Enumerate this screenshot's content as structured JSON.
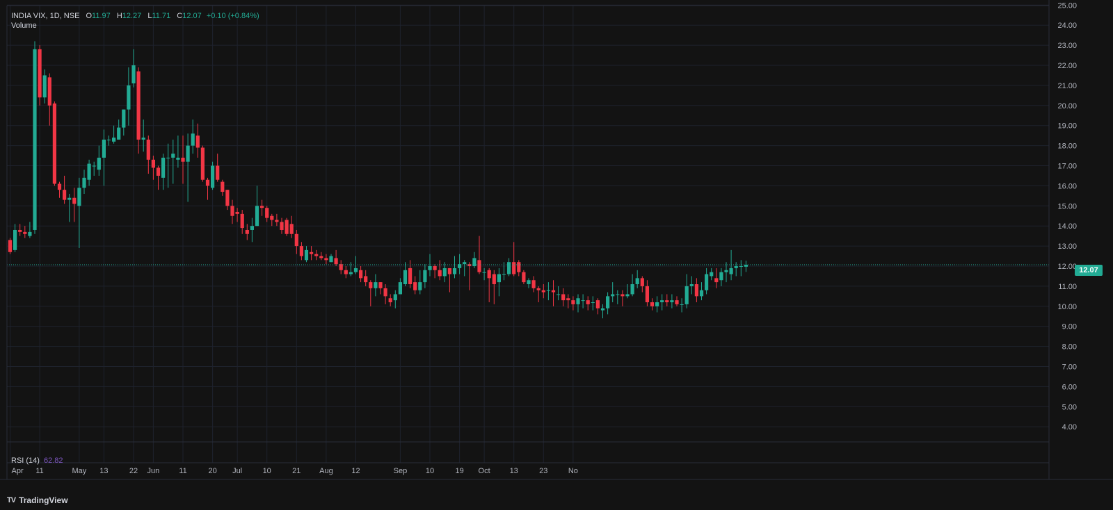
{
  "legend": {
    "symbol": "INDIA VIX, 1D, NSE",
    "open_key": "O",
    "open": "11.97",
    "high_key": "H",
    "high": "12.27",
    "low_key": "L",
    "low": "11.71",
    "close_key": "C",
    "close": "12.07",
    "change": "+0.10 (+0.84%)"
  },
  "volume_label": "Volume",
  "rsi": {
    "label": "RSI (14)",
    "value": "62.82"
  },
  "last_price": "12.07",
  "brand": {
    "logo": "TV",
    "name": "TradingView"
  },
  "colors": {
    "up": "#22ab94",
    "down": "#f23645",
    "background": "#131313",
    "grid": "#1e222d",
    "axis_text": "#b2b5be",
    "rsi": "#7e57c2"
  },
  "chart_data": {
    "type": "candlestick",
    "title": "INDIA VIX, 1D, NSE",
    "ylim": [
      3.5,
      25
    ],
    "y_ticks": [
      "4.00",
      "5.00",
      "6.00",
      "7.00",
      "8.00",
      "9.00",
      "10.00",
      "11.00",
      "12.00",
      "13.00",
      "14.00",
      "15.00",
      "16.00",
      "17.00",
      "18.00",
      "19.00",
      "20.00",
      "21.00",
      "22.00",
      "23.00",
      "24.00",
      "25.00"
    ],
    "x_labels": [
      {
        "label": "Apr",
        "index": 0
      },
      {
        "label": "11",
        "index": 6
      },
      {
        "label": "May",
        "index": 14
      },
      {
        "label": "13",
        "index": 19
      },
      {
        "label": "22",
        "index": 25
      },
      {
        "label": "Jun",
        "index": 29
      },
      {
        "label": "11",
        "index": 35
      },
      {
        "label": "20",
        "index": 41
      },
      {
        "label": "Jul",
        "index": 46
      },
      {
        "label": "10",
        "index": 52
      },
      {
        "label": "21",
        "index": 58
      },
      {
        "label": "Aug",
        "index": 64
      },
      {
        "label": "12",
        "index": 70
      },
      {
        "label": "Sep",
        "index": 79
      },
      {
        "label": "10",
        "index": 85
      },
      {
        "label": "19",
        "index": 91
      },
      {
        "label": "Oct",
        "index": 96
      },
      {
        "label": "13",
        "index": 102
      },
      {
        "label": "23",
        "index": 108
      },
      {
        "label": "No",
        "index": 114
      }
    ],
    "candles": [
      [
        13.3,
        12.7,
        13.4,
        12.6
      ],
      [
        12.8,
        13.8,
        14.1,
        12.7
      ],
      [
        13.8,
        13.7,
        14.1,
        13.5
      ],
      [
        13.7,
        13.6,
        14.0,
        13.4
      ],
      [
        13.5,
        13.7,
        14.2,
        13.4
      ],
      [
        13.8,
        22.8,
        23.2,
        13.6
      ],
      [
        22.8,
        20.4,
        23.0,
        20.0
      ],
      [
        20.4,
        21.5,
        21.8,
        20.1
      ],
      [
        21.4,
        20.0,
        21.6,
        19.0
      ],
      [
        20.1,
        16.1,
        20.2,
        16.0
      ],
      [
        16.1,
        15.8,
        16.2,
        15.4
      ],
      [
        15.8,
        15.3,
        16.5,
        15.1
      ],
      [
        15.3,
        15.4,
        15.6,
        14.2
      ],
      [
        15.4,
        15.1,
        15.9,
        14.2
      ],
      [
        15.0,
        15.9,
        16.4,
        12.9
      ],
      [
        15.9,
        16.4,
        16.8,
        15.6
      ],
      [
        16.3,
        17.1,
        17.3,
        16.0
      ],
      [
        17.0,
        17.0,
        17.2,
        16.5
      ],
      [
        16.8,
        17.4,
        18.0,
        16.5
      ],
      [
        17.4,
        18.3,
        18.8,
        16.0
      ],
      [
        18.3,
        18.3,
        18.5,
        18.0
      ],
      [
        18.2,
        18.4,
        19.0,
        18.1
      ],
      [
        18.3,
        18.9,
        19.3,
        18.3
      ],
      [
        18.9,
        19.8,
        19.8,
        18.5
      ],
      [
        19.8,
        21.0,
        21.9,
        19.0
      ],
      [
        21.1,
        22.0,
        22.8,
        20.9
      ],
      [
        21.7,
        18.3,
        21.9,
        17.6
      ],
      [
        18.3,
        18.4,
        19.3,
        17.7
      ],
      [
        18.3,
        17.3,
        18.5,
        16.6
      ],
      [
        17.3,
        16.9,
        17.5,
        16.3
      ],
      [
        16.9,
        16.5,
        17.0,
        15.8
      ],
      [
        16.4,
        17.4,
        17.6,
        15.8
      ],
      [
        17.4,
        17.4,
        18.1,
        15.9
      ],
      [
        17.4,
        17.6,
        18.3,
        16.1
      ],
      [
        17.3,
        17.4,
        18.5,
        16.9
      ],
      [
        17.4,
        17.2,
        18.5,
        16.1
      ],
      [
        17.2,
        18.0,
        18.6,
        15.2
      ],
      [
        18.0,
        18.6,
        19.3,
        17.6
      ],
      [
        18.5,
        17.9,
        19.1,
        17.4
      ],
      [
        17.9,
        16.3,
        18.0,
        16.2
      ],
      [
        16.3,
        16.0,
        16.4,
        15.3
      ],
      [
        15.9,
        17.0,
        17.2,
        15.8
      ],
      [
        17.0,
        16.3,
        17.6,
        16.2
      ],
      [
        16.2,
        15.7,
        16.3,
        15.5
      ],
      [
        15.8,
        15.0,
        15.8,
        14.8
      ],
      [
        15.0,
        14.5,
        15.3,
        14.1
      ],
      [
        14.7,
        14.6,
        14.9,
        14.2
      ],
      [
        14.6,
        13.9,
        14.8,
        13.6
      ],
      [
        13.8,
        13.6,
        14.1,
        13.3
      ],
      [
        13.8,
        14.0,
        14.4,
        13.2
      ],
      [
        14.0,
        15.0,
        16.0,
        14.0
      ],
      [
        15.0,
        14.9,
        15.3,
        14.5
      ],
      [
        14.9,
        14.4,
        15.0,
        14.2
      ],
      [
        14.5,
        14.3,
        14.6,
        14.0
      ],
      [
        14.3,
        14.2,
        14.6,
        14.0
      ],
      [
        14.2,
        13.8,
        14.4,
        13.6
      ],
      [
        14.3,
        13.6,
        14.4,
        13.5
      ],
      [
        14.1,
        13.6,
        14.5,
        13.4
      ],
      [
        13.6,
        13.0,
        13.8,
        12.6
      ],
      [
        13.0,
        12.5,
        13.2,
        12.3
      ],
      [
        12.3,
        12.8,
        13.0,
        12.2
      ],
      [
        12.7,
        12.6,
        13.0,
        12.3
      ],
      [
        12.6,
        12.5,
        12.8,
        12.3
      ],
      [
        12.5,
        12.4,
        12.7,
        12.3
      ],
      [
        12.4,
        12.3,
        12.6,
        12.1
      ],
      [
        12.2,
        12.5,
        12.6,
        12.2
      ],
      [
        12.4,
        12.1,
        12.8,
        12.0
      ],
      [
        12.1,
        11.8,
        12.3,
        11.6
      ],
      [
        11.8,
        11.6,
        12.0,
        11.4
      ],
      [
        11.6,
        11.7,
        12.2,
        11.5
      ],
      [
        11.7,
        11.9,
        12.5,
        11.6
      ],
      [
        11.8,
        11.4,
        12.0,
        11.2
      ],
      [
        11.5,
        11.2,
        11.8,
        11.0
      ],
      [
        11.2,
        10.9,
        11.3,
        10.0
      ],
      [
        10.9,
        11.2,
        11.6,
        10.5
      ],
      [
        11.2,
        10.9,
        11.2,
        10.6
      ],
      [
        10.9,
        10.5,
        11.1,
        10.1
      ],
      [
        10.4,
        10.2,
        10.6,
        10.0
      ],
      [
        10.3,
        10.6,
        10.8,
        9.9
      ],
      [
        10.6,
        11.2,
        11.4,
        10.6
      ],
      [
        11.1,
        11.8,
        12.2,
        11.0
      ],
      [
        11.9,
        11.1,
        12.3,
        10.9
      ],
      [
        11.2,
        10.8,
        11.5,
        10.6
      ],
      [
        10.8,
        11.2,
        11.8,
        10.6
      ],
      [
        11.2,
        11.8,
        12.1,
        10.9
      ],
      [
        11.8,
        12.0,
        12.6,
        11.5
      ],
      [
        12.0,
        11.8,
        12.1,
        11.4
      ],
      [
        11.8,
        11.5,
        12.3,
        11.3
      ],
      [
        11.5,
        11.9,
        12.2,
        11.2
      ],
      [
        11.9,
        11.6,
        11.9,
        10.7
      ],
      [
        11.6,
        11.9,
        12.5,
        11.4
      ],
      [
        11.9,
        12.1,
        12.6,
        11.6
      ],
      [
        12.1,
        12.2,
        12.3,
        11.5
      ],
      [
        12.1,
        12.0,
        12.2,
        10.8
      ],
      [
        12.0,
        12.4,
        12.7,
        11.9
      ],
      [
        12.3,
        11.7,
        13.5,
        11.6
      ],
      [
        11.7,
        11.7,
        11.9,
        11.3
      ],
      [
        11.8,
        11.4,
        11.9,
        10.2
      ],
      [
        11.6,
        11.1,
        11.8,
        10.1
      ],
      [
        11.2,
        11.6,
        11.9,
        10.5
      ],
      [
        11.6,
        11.6,
        12.2,
        11.3
      ],
      [
        11.6,
        12.2,
        12.4,
        11.5
      ],
      [
        12.2,
        11.6,
        13.2,
        11.5
      ],
      [
        12.2,
        11.7,
        12.3,
        11.5
      ],
      [
        11.7,
        11.2,
        11.8,
        11.1
      ],
      [
        11.1,
        11.3,
        11.4,
        10.9
      ],
      [
        11.3,
        10.9,
        11.5,
        10.7
      ],
      [
        10.9,
        10.8,
        11.0,
        10.2
      ],
      [
        10.8,
        10.7,
        11.1,
        10.4
      ],
      [
        10.8,
        10.8,
        11.2,
        10.3
      ],
      [
        10.8,
        10.7,
        11.3,
        10.0
      ],
      [
        10.6,
        10.6,
        11.0,
        10.3
      ],
      [
        10.6,
        10.3,
        10.9,
        10.0
      ],
      [
        10.4,
        10.3,
        10.6,
        9.9
      ],
      [
        10.3,
        10.1,
        10.5,
        9.8
      ],
      [
        10.1,
        10.4,
        10.6,
        9.7
      ],
      [
        10.3,
        10.3,
        10.6,
        9.9
      ],
      [
        10.3,
        10.1,
        10.5,
        9.8
      ],
      [
        10.2,
        10.2,
        10.5,
        9.8
      ],
      [
        10.3,
        9.9,
        10.4,
        9.6
      ],
      [
        9.8,
        9.9,
        10.1,
        9.4
      ],
      [
        9.9,
        10.5,
        10.7,
        9.6
      ],
      [
        10.5,
        10.6,
        11.2,
        10.2
      ],
      [
        10.6,
        10.6,
        10.8,
        10.1
      ],
      [
        10.6,
        10.5,
        10.8,
        10.0
      ],
      [
        10.5,
        10.6,
        11.1,
        10.4
      ],
      [
        10.6,
        11.1,
        11.6,
        10.5
      ],
      [
        11.1,
        11.4,
        11.8,
        10.9
      ],
      [
        11.4,
        11.0,
        11.5,
        10.7
      ],
      [
        11.0,
        10.2,
        11.3,
        10.0
      ],
      [
        10.2,
        10.0,
        10.4,
        9.8
      ],
      [
        10.0,
        10.2,
        10.5,
        9.7
      ],
      [
        10.2,
        10.3,
        10.6,
        9.8
      ],
      [
        10.3,
        10.2,
        10.6,
        10.0
      ],
      [
        10.2,
        10.3,
        10.6,
        9.9
      ],
      [
        10.3,
        10.1,
        10.5,
        10.0
      ],
      [
        10.1,
        10.1,
        10.4,
        9.7
      ],
      [
        10.1,
        11.0,
        11.6,
        9.9
      ],
      [
        11.0,
        11.1,
        11.5,
        10.6
      ],
      [
        11.1,
        10.5,
        11.4,
        10.2
      ],
      [
        10.5,
        10.8,
        11.2,
        10.3
      ],
      [
        10.8,
        11.6,
        11.9,
        10.6
      ],
      [
        11.5,
        11.7,
        11.9,
        11.3
      ],
      [
        11.4,
        11.2,
        11.9,
        10.9
      ],
      [
        11.3,
        11.7,
        11.9,
        11.0
      ],
      [
        11.7,
        11.8,
        12.2,
        11.2
      ],
      [
        11.6,
        11.9,
        12.8,
        11.3
      ],
      [
        11.9,
        12.0,
        12.2,
        11.5
      ],
      [
        12.0,
        12.0,
        12.3,
        11.5
      ],
      [
        11.97,
        12.07,
        12.27,
        11.71
      ]
    ]
  }
}
